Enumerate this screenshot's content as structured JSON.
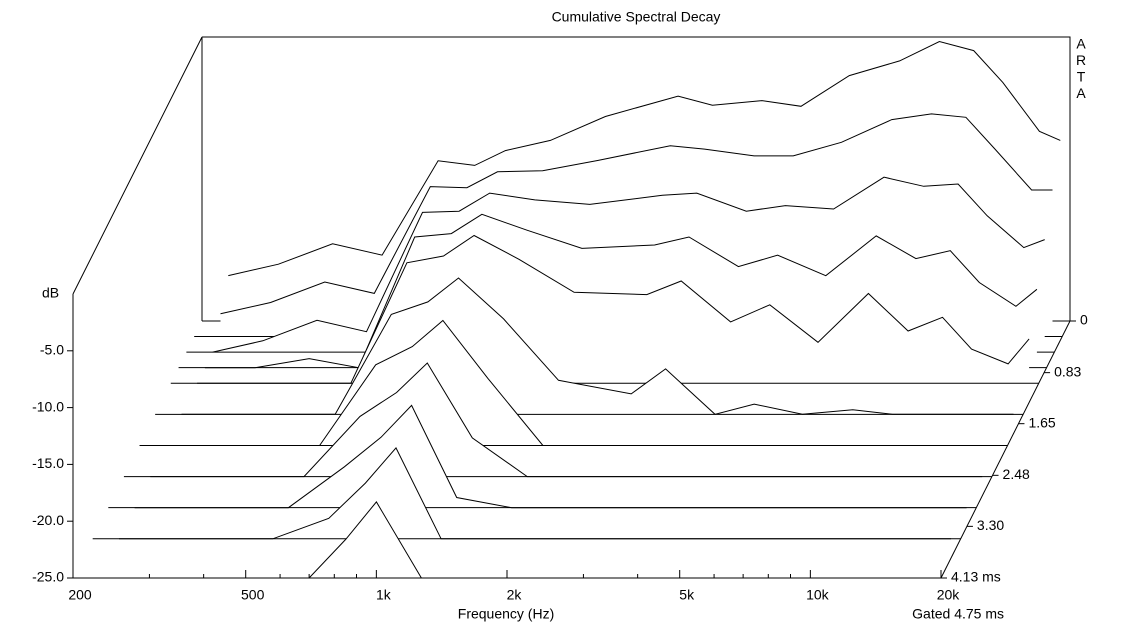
{
  "chart_data": {
    "type": "waterfall",
    "title": "Cumulative Spectral Decay",
    "watermark": [
      "A",
      "R",
      "T",
      "A"
    ],
    "xlabel": "Frequency (Hz)",
    "ylabel": "dB",
    "note": "Gated 4.75 ms",
    "xscale": "log",
    "color": "#000000",
    "x": [
      230,
      300,
      400,
      520,
      700,
      850,
      1000,
      1270,
      1700,
      2500,
      3000,
      3900,
      4800,
      6200,
      8100,
      10000,
      12000,
      14000,
      17000,
      19000
    ],
    "z": [
      0,
      0.25,
      0.5,
      0.75,
      1.0,
      1.5,
      2.0,
      2.5,
      3.0,
      3.5,
      4.13
    ],
    "series": [
      {
        "values": [
          -21,
          -20,
          -18.2,
          -19.2,
          -10.9,
          -11.3,
          -10,
          -9.1,
          -7,
          -5.2,
          -6,
          -5.6,
          -6.1,
          -3.4,
          -2.1,
          -0.4,
          -1.2,
          -4,
          -8.3,
          -9.1
        ]
      },
      {
        "values": [
          -23,
          -22,
          -20.2,
          -21.2,
          -11.8,
          -11.9,
          -10.5,
          -10.4,
          -9.5,
          -8.2,
          -8.5,
          -9.1,
          -9.1,
          -7.9,
          -5.9,
          -5.4,
          -5.7,
          -8.5,
          -12.1,
          -12.1
        ]
      },
      {
        "values": [
          -25,
          -24,
          -22.2,
          -23.2,
          -12.7,
          -12.6,
          -11,
          -11.6,
          -12,
          -11.2,
          -11,
          -12.6,
          -12.1,
          -12.4,
          -9.6,
          -10.4,
          -10.2,
          -13,
          -15.8,
          -15.1
        ]
      },
      {
        "values": [
          -25,
          -25,
          -24.2,
          -25,
          -13.5,
          -13.2,
          -11.5,
          -12.9,
          -14.5,
          -14.2,
          -13.5,
          -16.1,
          -15.1,
          -16.9,
          -13.4,
          -15.4,
          -14.7,
          -17.5,
          -19.6,
          -18.1
        ]
      },
      {
        "values": [
          -25,
          -25,
          -25,
          -25,
          -14.4,
          -13.8,
          -12,
          -14.1,
          -17,
          -17.2,
          -16,
          -19.6,
          -18.1,
          -21.4,
          -17.1,
          -20.4,
          -19.2,
          -22,
          -23.3,
          -21.1
        ]
      },
      {
        "values": [
          -25,
          -25,
          -25,
          -25,
          -16.2,
          -15.1,
          -13,
          -16.6,
          -22,
          -23.2,
          -21,
          -25,
          -24.1,
          -25,
          -24.6,
          -25,
          -25,
          -25,
          -25,
          -25
        ]
      },
      {
        "values": [
          -25,
          -25,
          -25,
          -25,
          -17.9,
          -16.3,
          -14,
          -19.1,
          -25,
          -25,
          -25,
          -25,
          -25,
          -25,
          -25,
          -25,
          -25,
          -25,
          -25,
          -25
        ]
      },
      {
        "values": [
          -25,
          -25,
          -25,
          -25,
          -19.7,
          -17.6,
          -15,
          -21.6,
          -25,
          -25,
          -25,
          -25,
          -25,
          -25,
          -25,
          -25,
          -25,
          -25,
          -25,
          -25
        ]
      },
      {
        "values": [
          -25,
          -25,
          -25,
          -25,
          -21.4,
          -18.8,
          -16,
          -24.1,
          -25,
          -25,
          -25,
          -25,
          -25,
          -25,
          -25,
          -25,
          -25,
          -25,
          -25,
          -25
        ]
      },
      {
        "values": [
          -25,
          -25,
          -25,
          -25,
          -23.2,
          -20.1,
          -17,
          -25,
          -25,
          -25,
          -25,
          -25,
          -25,
          -25,
          -25,
          -25,
          -25,
          -25,
          -25,
          -25
        ]
      },
      {
        "values": [
          -25,
          -25,
          -25,
          -25,
          -25,
          -21.6,
          -18.3,
          -25,
          -25,
          -25,
          -25,
          -25,
          -25,
          -25,
          -25,
          -25,
          -25,
          -25,
          -25,
          -25
        ]
      }
    ],
    "xlim": [
      200,
      20000
    ],
    "xticks": [
      200,
      500,
      {
        "value": 1000,
        "label": "1k"
      },
      {
        "value": 2000,
        "label": "2k"
      },
      {
        "value": 5000,
        "label": "5k"
      },
      {
        "value": 10000,
        "label": "10k"
      },
      {
        "value": 20000,
        "label": "20k"
      }
    ],
    "xminorticks": [
      300,
      400,
      600,
      700,
      800,
      900,
      3000,
      4000,
      6000,
      7000,
      8000,
      9000
    ],
    "ylim": [
      -25,
      0
    ],
    "yticks": [
      {
        "value": -5,
        "label": "-5.0"
      },
      {
        "value": -10,
        "label": "-10.0"
      },
      {
        "value": -15,
        "label": "-15.0"
      },
      {
        "value": -20,
        "label": "-20.0"
      },
      {
        "value": -25,
        "label": "-25.0"
      }
    ],
    "zlim": [
      0,
      4.13
    ],
    "zticks": [
      0,
      0.83,
      1.65,
      2.48,
      {
        "value": 3.3,
        "label": "3.30"
      },
      {
        "value": 4.13,
        "label": "4.13 ms"
      }
    ]
  }
}
